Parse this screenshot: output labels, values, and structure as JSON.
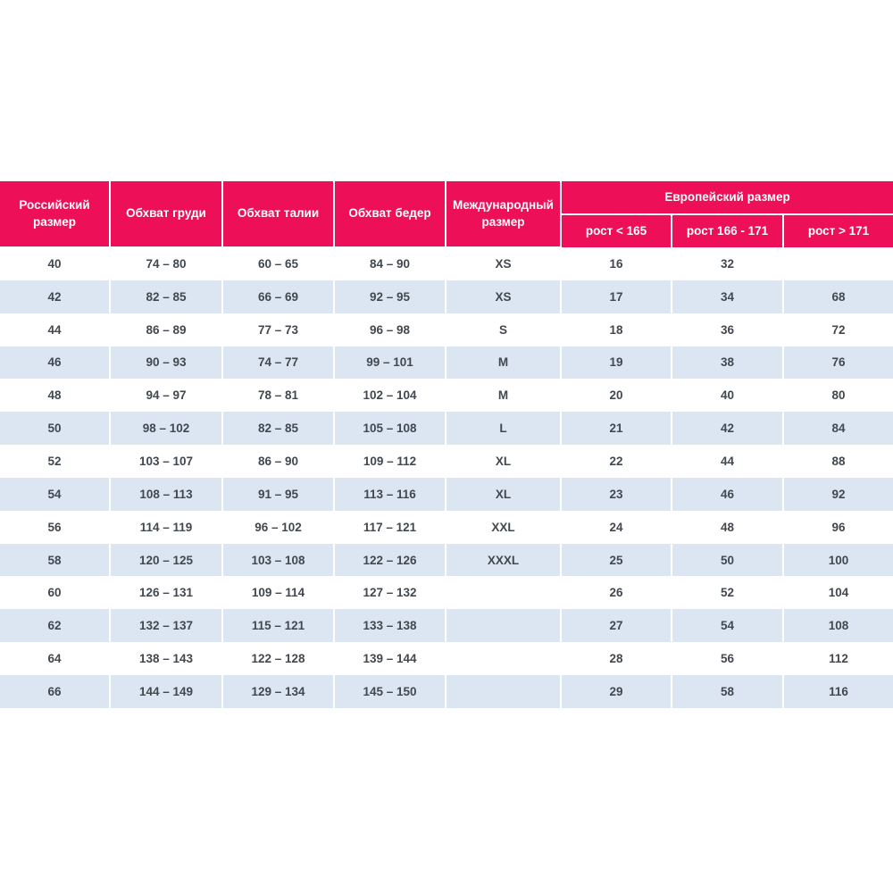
{
  "chart_data": {
    "type": "table",
    "header": {
      "russian_size": "Российский размер",
      "chest": "Обхват груди",
      "waist": "Обхват талии",
      "hips": "Обхват бедер",
      "international_size": "Международный размер",
      "european_size_group": "Европейский размер",
      "height_under_165": "рост < 165",
      "height_166_171": "рост 166 - 171",
      "height_over_171": "рост > 171"
    },
    "rows": [
      [
        "40",
        "74 – 80",
        "60 – 65",
        "84 – 90",
        "XS",
        "16",
        "32",
        ""
      ],
      [
        "42",
        "82 – 85",
        "66 – 69",
        "92 – 95",
        "XS",
        "17",
        "34",
        "68"
      ],
      [
        "44",
        "86 – 89",
        "77 – 73",
        "96 – 98",
        "S",
        "18",
        "36",
        "72"
      ],
      [
        "46",
        "90 – 93",
        "74 – 77",
        "99 – 101",
        "M",
        "19",
        "38",
        "76"
      ],
      [
        "48",
        "94 – 97",
        "78 – 81",
        "102 – 104",
        "M",
        "20",
        "40",
        "80"
      ],
      [
        "50",
        "98 – 102",
        "82 – 85",
        "105 – 108",
        "L",
        "21",
        "42",
        "84"
      ],
      [
        "52",
        "103 – 107",
        "86 – 90",
        "109 – 112",
        "XL",
        "22",
        "44",
        "88"
      ],
      [
        "54",
        "108 – 113",
        "91 – 95",
        "113 – 116",
        "XL",
        "23",
        "46",
        "92"
      ],
      [
        "56",
        "114 – 119",
        "96 – 102",
        "117 – 121",
        "XXL",
        "24",
        "48",
        "96"
      ],
      [
        "58",
        "120 – 125",
        "103 – 108",
        "122 – 126",
        "XXXL",
        "25",
        "50",
        "100"
      ],
      [
        "60",
        "126 – 131",
        "109 – 114",
        "127 – 132",
        "",
        "26",
        "52",
        "104"
      ],
      [
        "62",
        "132 – 137",
        "115 – 121",
        "133 – 138",
        "",
        "27",
        "54",
        "108"
      ],
      [
        "64",
        "138 – 143",
        "122 – 128",
        "139 – 144",
        "",
        "28",
        "56",
        "112"
      ],
      [
        "66",
        "144 – 149",
        "129 – 134",
        "145 – 150",
        "",
        "29",
        "58",
        "116"
      ]
    ]
  },
  "colors": {
    "header_bg": "#ED0F58",
    "header_text": "#FFFFFF",
    "row_odd_bg": "#FFFFFF",
    "row_even_bg": "#DCE6F2",
    "cell_text": "#42484F",
    "divider": "#FFFFFF"
  }
}
